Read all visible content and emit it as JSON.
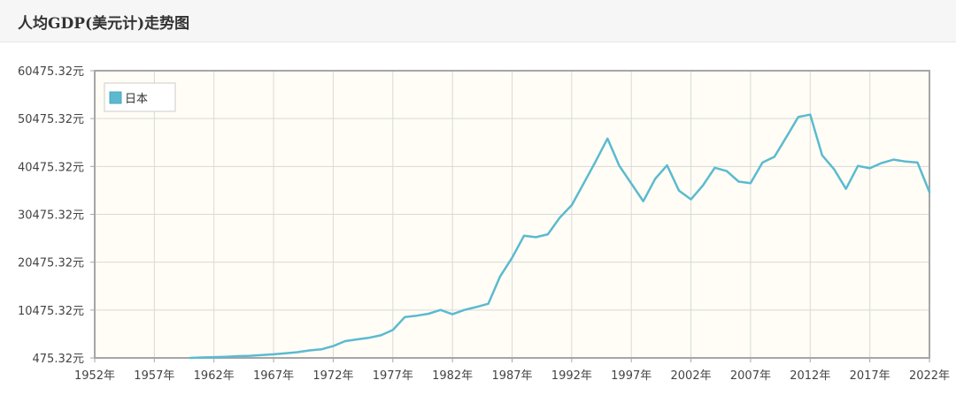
{
  "header": {
    "title": "人均GDP(美元计)走势图"
  },
  "colors": {
    "plot_background": "#fffdf5",
    "series": "#5bbad0",
    "grid": "#d9d9d9",
    "axis": "#a6a6a6"
  },
  "chart_data": {
    "type": "line",
    "title": "人均GDP(美元计)走势图",
    "xlabel": "",
    "ylabel": "",
    "grid": true,
    "legend_placement": "top-left",
    "xlim": [
      1952,
      2022
    ],
    "ylim": [
      475.32,
      60475.32
    ],
    "x_ticks": [
      1952,
      1957,
      1962,
      1967,
      1972,
      1977,
      1982,
      1987,
      1992,
      1997,
      2002,
      2007,
      2012,
      2017,
      2022
    ],
    "x_tick_labels": [
      "1952年",
      "1957年",
      "1962年",
      "1967年",
      "1972年",
      "1977年",
      "1982年",
      "1987年",
      "1992年",
      "1997年",
      "2002年",
      "2007年",
      "2012年",
      "2017年",
      "2022年"
    ],
    "y_ticks": [
      475.32,
      10475.32,
      20475.32,
      30475.32,
      40475.32,
      50475.32,
      60475.32
    ],
    "y_tick_labels": [
      "475.32元",
      "10475.32元",
      "20475.32元",
      "30475.32元",
      "40475.32元",
      "50475.32元",
      "60475.32元"
    ],
    "series": [
      {
        "name": "日本",
        "x": [
          1960,
          1961,
          1962,
          1963,
          1964,
          1965,
          1966,
          1967,
          1968,
          1969,
          1970,
          1971,
          1972,
          1973,
          1974,
          1975,
          1976,
          1977,
          1978,
          1979,
          1980,
          1981,
          1982,
          1983,
          1984,
          1985,
          1986,
          1987,
          1988,
          1989,
          1990,
          1991,
          1992,
          1993,
          1994,
          1995,
          1996,
          1997,
          1998,
          1999,
          2000,
          2001,
          2002,
          2003,
          2004,
          2005,
          2006,
          2007,
          2008,
          2009,
          2010,
          2011,
          2012,
          2013,
          2014,
          2015,
          2016,
          2017,
          2018,
          2019,
          2020,
          2021,
          2022
        ],
        "values": [
          475,
          564,
          637,
          720,
          836,
          920,
          1058,
          1228,
          1450,
          1670,
          2040,
          2270,
          2950,
          3990,
          4360,
          4680,
          5200,
          6300,
          9000,
          9300,
          9700,
          10500,
          9600,
          10500,
          11100,
          11800,
          17500,
          21400,
          26000,
          25700,
          26300,
          29800,
          32400,
          36900,
          41500,
          46300,
          40600,
          36900,
          33200,
          37900,
          40700,
          35400,
          33600,
          36500,
          40200,
          39500,
          37300,
          37000,
          41300,
          42500,
          46600,
          50800,
          51300,
          42800,
          39900,
          35800,
          40600,
          40100,
          41200,
          41900,
          41500,
          41300,
          35100
        ]
      }
    ]
  }
}
